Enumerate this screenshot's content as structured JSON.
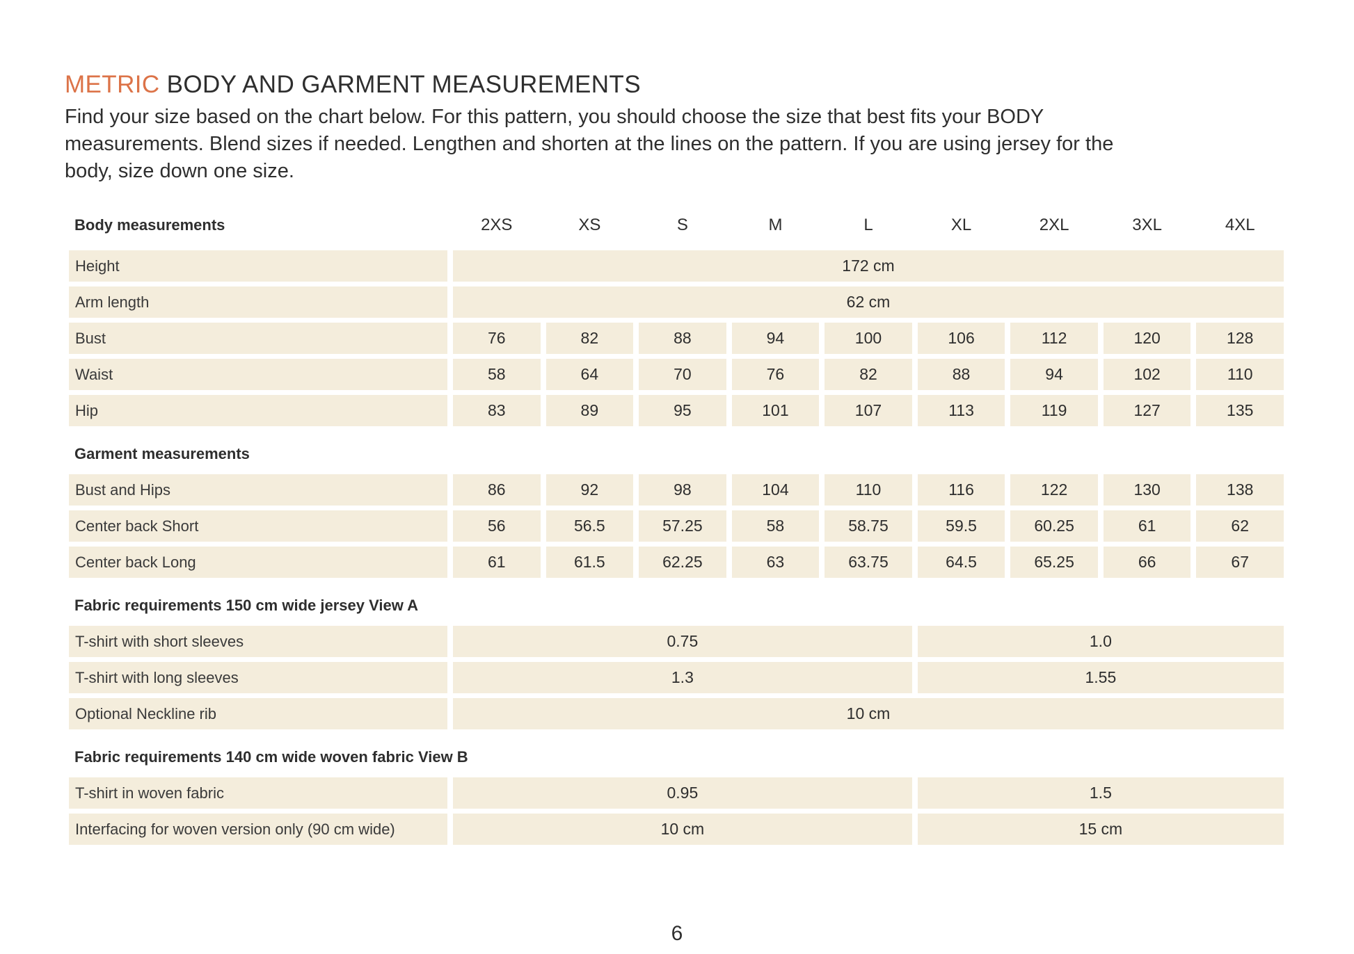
{
  "document": {
    "title_highlight": "METRIC",
    "title_rest": " BODY AND GARMENT MEASUREMENTS",
    "intro_lines": [
      "Find your size based on the chart below. For this pattern, you should choose the size that best fits your BODY",
      "measurements. Blend sizes if needed. Lengthen and shorten at the lines on the pattern. If you are using jersey for the",
      "body, size down one size."
    ],
    "page_number": "6"
  },
  "colors": {
    "accent": "#DC7348",
    "cell_bg": "#F4EDDC",
    "text": "#2E2E2E"
  },
  "table": {
    "header_label": "Body measurements",
    "sizes": [
      "2XS",
      "XS",
      "S",
      "M",
      "L",
      "XL",
      "2XL",
      "3XL",
      "4XL"
    ],
    "rows": [
      {
        "kind": "span",
        "label": "Height",
        "value": "172 cm"
      },
      {
        "kind": "span",
        "label": "Arm length",
        "value": "62 cm"
      },
      {
        "kind": "cells",
        "label": "Bust",
        "values": [
          "76",
          "82",
          "88",
          "94",
          "100",
          "106",
          "112",
          "120",
          "128"
        ]
      },
      {
        "kind": "cells",
        "label": "Waist",
        "values": [
          "58",
          "64",
          "70",
          "76",
          "82",
          "88",
          "94",
          "102",
          "110"
        ]
      },
      {
        "kind": "cells",
        "label": "Hip",
        "values": [
          "83",
          "89",
          "95",
          "101",
          "107",
          "113",
          "119",
          "127",
          "135"
        ]
      },
      {
        "kind": "section",
        "label": "Garment measurements"
      },
      {
        "kind": "cells",
        "label": "Bust and Hips",
        "values": [
          "86",
          "92",
          "98",
          "104",
          "110",
          "116",
          "122",
          "130",
          "138"
        ]
      },
      {
        "kind": "cells",
        "label": "Center back Short",
        "values": [
          "56",
          "56.5",
          "57.25",
          "58",
          "58.75",
          "59.5",
          "60.25",
          "61",
          "62"
        ]
      },
      {
        "kind": "cells",
        "label": "Center back Long",
        "values": [
          "61",
          "61.5",
          "62.25",
          "63",
          "63.75",
          "64.5",
          "65.25",
          "66",
          "67"
        ]
      },
      {
        "kind": "section",
        "label": "Fabric requirements 150 cm wide jersey View A"
      },
      {
        "kind": "split",
        "label": "T-shirt with short sleeves",
        "values": [
          "0.75",
          "1.0"
        ]
      },
      {
        "kind": "split",
        "label": "T-shirt with long sleeves",
        "values": [
          "1.3",
          "1.55"
        ]
      },
      {
        "kind": "span",
        "label": "Optional Neckline rib",
        "value": "10 cm"
      },
      {
        "kind": "section",
        "label": "Fabric requirements 140 cm wide woven fabric View B"
      },
      {
        "kind": "split",
        "label": "T-shirt in woven fabric",
        "values": [
          "0.95",
          "1.5"
        ]
      },
      {
        "kind": "split",
        "label": "Interfacing for woven version only (90 cm wide)",
        "values": [
          "10 cm",
          "15 cm"
        ]
      }
    ]
  }
}
